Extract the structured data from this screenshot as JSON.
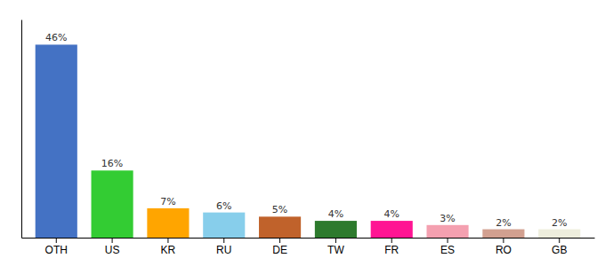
{
  "chart_data": {
    "type": "bar",
    "categories": [
      "OTH",
      "US",
      "KR",
      "RU",
      "DE",
      "TW",
      "FR",
      "ES",
      "RO",
      "GB"
    ],
    "values": [
      46,
      16,
      7,
      6,
      5,
      4,
      4,
      3,
      2,
      2
    ],
    "value_labels": [
      "46%",
      "16%",
      "7%",
      "6%",
      "5%",
      "4%",
      "4%",
      "3%",
      "2%",
      "2%"
    ],
    "colors": [
      "#4472C4",
      "#33CC33",
      "#FFA500",
      "#87CEEB",
      "#C0622B",
      "#2D7A2D",
      "#FF1493",
      "#F4A0B0",
      "#D2A090",
      "#EEEEDD"
    ],
    "data_labels": true,
    "ylim": [
      0,
      52
    ],
    "tick_labels": "x",
    "grid": false
  }
}
